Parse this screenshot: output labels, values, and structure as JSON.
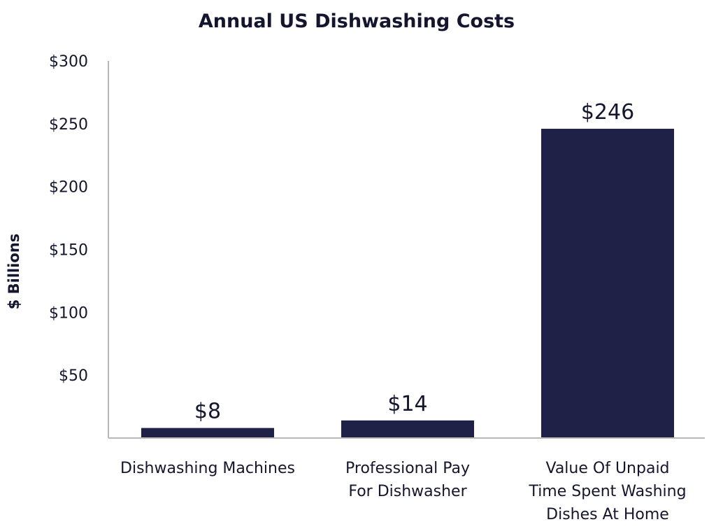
{
  "chart_data": {
    "type": "bar",
    "title": "Annual US Dishwashing Costs",
    "ylabel": "$ Billions",
    "xlabel": "",
    "categories": [
      [
        "Dishwashing Machines"
      ],
      [
        "Professional Pay",
        "For Dishwasher"
      ],
      [
        "Value Of Unpaid",
        "Time Spent Washing",
        "Dishes At Home"
      ]
    ],
    "values": [
      8,
      14,
      246
    ],
    "data_labels": [
      "$8",
      "$14",
      "$246"
    ],
    "yticks": [
      {
        "value": 50,
        "label": "$50"
      },
      {
        "value": 100,
        "label": "$100"
      },
      {
        "value": 150,
        "label": "$150"
      },
      {
        "value": 200,
        "label": "$200"
      },
      {
        "value": 250,
        "label": "$250"
      },
      {
        "value": 300,
        "label": "$300"
      }
    ],
    "ylim": [
      0,
      300
    ],
    "grid": false,
    "legend": "none",
    "colors": {
      "bar": "#1f2147",
      "axis": "#b8b8b8",
      "text": "#141630"
    }
  }
}
